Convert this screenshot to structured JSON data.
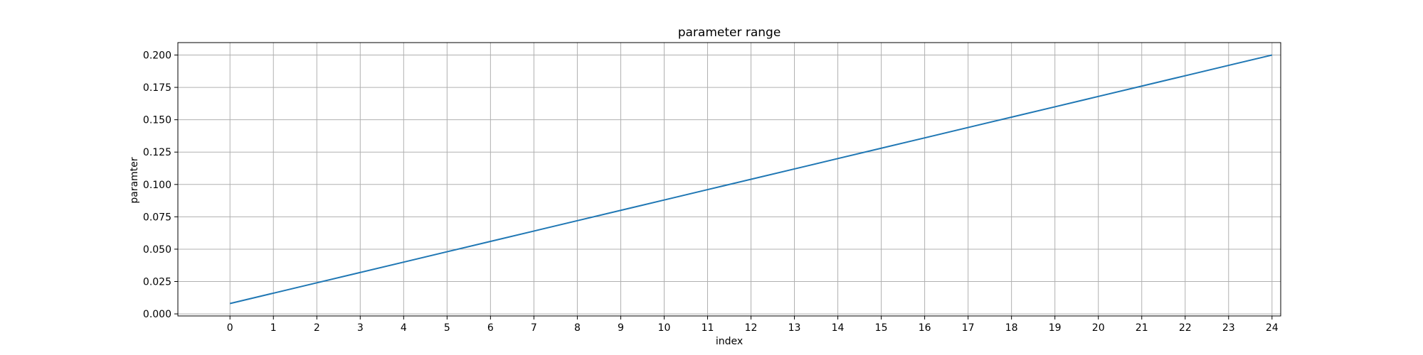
{
  "chart_data": {
    "type": "line",
    "title": "parameter range",
    "xlabel": "index",
    "ylabel": "paramter",
    "x": [
      0,
      1,
      2,
      3,
      4,
      5,
      6,
      7,
      8,
      9,
      10,
      11,
      12,
      13,
      14,
      15,
      16,
      17,
      18,
      19,
      20,
      21,
      22,
      23,
      24
    ],
    "series": [
      {
        "values": [
          0.008,
          0.016,
          0.024,
          0.032,
          0.04,
          0.048,
          0.056,
          0.064,
          0.072,
          0.08,
          0.088,
          0.096,
          0.104,
          0.112,
          0.12,
          0.128,
          0.136,
          0.144,
          0.152,
          0.16,
          0.168,
          0.176,
          0.184,
          0.192,
          0.2
        ]
      }
    ],
    "x_ticks": [
      "0",
      "1",
      "2",
      "3",
      "4",
      "5",
      "6",
      "7",
      "8",
      "9",
      "10",
      "11",
      "12",
      "13",
      "14",
      "15",
      "16",
      "17",
      "18",
      "19",
      "20",
      "21",
      "22",
      "23",
      "24"
    ],
    "y_ticks": [
      "0.000",
      "0.025",
      "0.050",
      "0.075",
      "0.100",
      "0.125",
      "0.150",
      "0.175",
      "0.200"
    ],
    "xlim": [
      -1.2,
      24.2
    ],
    "ylim": [
      -0.0016,
      0.2096
    ],
    "grid": true,
    "line_color": "#1f77b4"
  }
}
